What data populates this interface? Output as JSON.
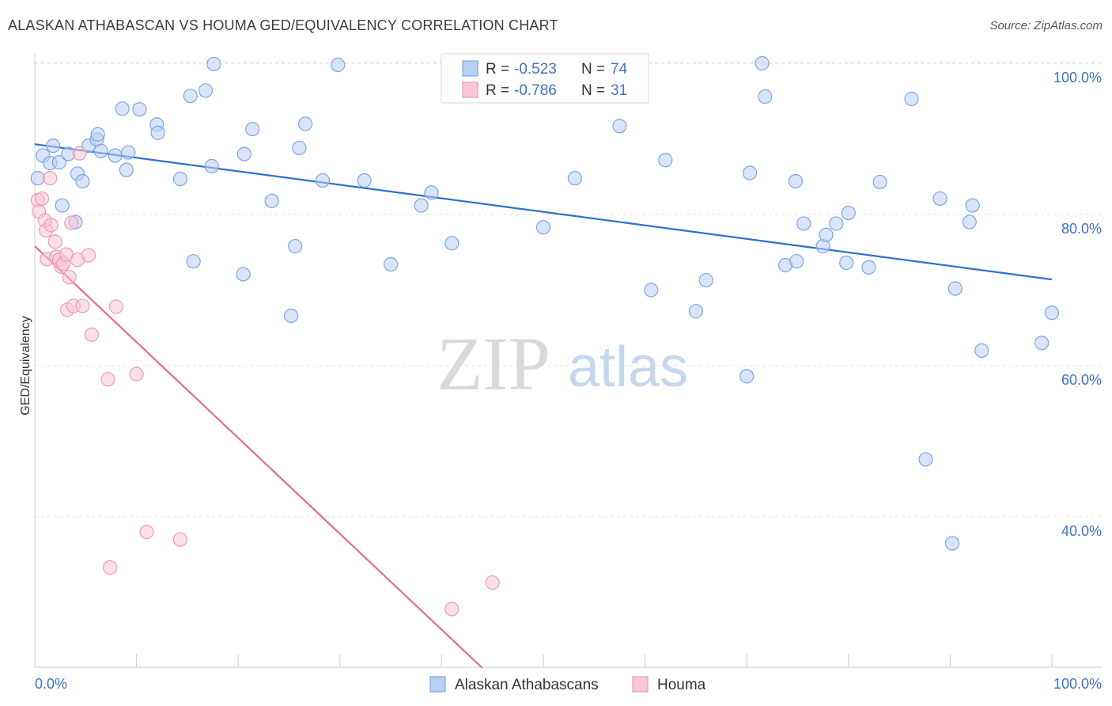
{
  "title": "ALASKAN ATHABASCAN VS HOUMA GED/EQUIVALENCY CORRELATION CHART",
  "source": "Source: ZipAtlas.com",
  "watermark": {
    "zip": "ZIP",
    "atlas": "atlas"
  },
  "legend": {
    "r_label": "R =",
    "n_label": "N =",
    "rows": [
      {
        "r": "-0.523",
        "n": "74"
      },
      {
        "r": "-0.786",
        "n": "31"
      }
    ]
  },
  "chart_data": {
    "type": "scatter",
    "title": "ALASKAN ATHABASCAN VS HOUMA GED/EQUIVALENCY CORRELATION CHART",
    "xlabel": "",
    "ylabel": "GED/Equivalency",
    "xlim": [
      0,
      100
    ],
    "ylim": [
      20,
      102
    ],
    "x_tick_labels": [
      "0.0%",
      "100.0%"
    ],
    "y_ticks": [
      40,
      60,
      80,
      100
    ],
    "y_tick_labels": [
      "40.0%",
      "60.0%",
      "80.0%",
      "100.0%"
    ],
    "grid": true,
    "legend_placement": "top-center",
    "series": [
      {
        "name": "Alaskan Athabascans",
        "color": "#7aa6e6",
        "fill": "#b8d0f4",
        "line_color": "#2f6fcf",
        "trend": {
          "x": [
            0,
            100
          ],
          "y": [
            89.3,
            71.4
          ]
        },
        "points": [
          [
            0.3,
            84.8
          ],
          [
            0.8,
            87.8
          ],
          [
            1.8,
            89.1
          ],
          [
            1.5,
            86.8
          ],
          [
            2.4,
            86.9
          ],
          [
            2.7,
            81.2
          ],
          [
            3.3,
            88.0
          ],
          [
            4.0,
            79.0
          ],
          [
            4.2,
            85.4
          ],
          [
            4.7,
            84.4
          ],
          [
            5.3,
            89.1
          ],
          [
            6.1,
            89.9
          ],
          [
            6.2,
            90.6
          ],
          [
            6.5,
            88.4
          ],
          [
            7.9,
            87.8
          ],
          [
            8.6,
            94.0
          ],
          [
            9.0,
            85.9
          ],
          [
            9.2,
            88.2
          ],
          [
            10.3,
            93.9
          ],
          [
            12.0,
            91.9
          ],
          [
            12.1,
            90.8
          ],
          [
            14.3,
            84.7
          ],
          [
            15.3,
            95.7
          ],
          [
            15.6,
            73.8
          ],
          [
            16.8,
            96.4
          ],
          [
            17.4,
            86.4
          ],
          [
            17.6,
            99.9
          ],
          [
            20.5,
            72.1
          ],
          [
            20.6,
            88.0
          ],
          [
            21.4,
            91.3
          ],
          [
            23.3,
            81.8
          ],
          [
            25.2,
            66.6
          ],
          [
            25.6,
            75.8
          ],
          [
            26.0,
            88.8
          ],
          [
            26.6,
            92.0
          ],
          [
            28.3,
            84.5
          ],
          [
            29.8,
            99.8
          ],
          [
            32.4,
            84.5
          ],
          [
            35.0,
            73.4
          ],
          [
            38.0,
            81.2
          ],
          [
            39.0,
            82.9
          ],
          [
            41.0,
            76.2
          ],
          [
            50.0,
            78.3
          ],
          [
            53.1,
            84.8
          ],
          [
            57.5,
            91.7
          ],
          [
            60.6,
            70.0
          ],
          [
            62.0,
            87.2
          ],
          [
            65.0,
            67.2
          ],
          [
            66.0,
            71.3
          ],
          [
            70.0,
            58.6
          ],
          [
            70.3,
            85.5
          ],
          [
            71.5,
            100.0
          ],
          [
            71.8,
            95.6
          ],
          [
            73.8,
            73.3
          ],
          [
            74.8,
            84.4
          ],
          [
            74.9,
            73.8
          ],
          [
            75.6,
            78.8
          ],
          [
            77.5,
            75.8
          ],
          [
            77.8,
            77.3
          ],
          [
            78.8,
            78.8
          ],
          [
            79.8,
            73.6
          ],
          [
            80.0,
            80.2
          ],
          [
            82.0,
            73.0
          ],
          [
            83.1,
            84.3
          ],
          [
            86.2,
            95.3
          ],
          [
            87.6,
            47.6
          ],
          [
            89.0,
            82.1
          ],
          [
            90.2,
            36.5
          ],
          [
            90.5,
            70.2
          ],
          [
            91.9,
            79.0
          ],
          [
            92.2,
            81.2
          ],
          [
            93.1,
            62.0
          ],
          [
            99.0,
            63.0
          ],
          [
            100.0,
            67.0
          ]
        ]
      },
      {
        "name": "Houma",
        "color": "#ef9ab3",
        "fill": "#f8c6d4",
        "line_color": "#e46a95",
        "trend": {
          "x": [
            0,
            44.0
          ],
          "y": [
            75.8,
            20.0
          ]
        },
        "points": [
          [
            0.3,
            81.9
          ],
          [
            0.4,
            80.4
          ],
          [
            0.7,
            82.1
          ],
          [
            1.0,
            79.2
          ],
          [
            1.1,
            77.9
          ],
          [
            1.2,
            74.1
          ],
          [
            1.5,
            84.8
          ],
          [
            1.6,
            78.6
          ],
          [
            2.0,
            76.4
          ],
          [
            2.1,
            74.4
          ],
          [
            2.4,
            74.0
          ],
          [
            2.6,
            73.1
          ],
          [
            2.8,
            73.5
          ],
          [
            3.1,
            74.7
          ],
          [
            3.2,
            67.4
          ],
          [
            3.4,
            71.7
          ],
          [
            3.6,
            78.9
          ],
          [
            3.8,
            67.9
          ],
          [
            4.2,
            74.0
          ],
          [
            4.4,
            88.1
          ],
          [
            4.7,
            67.9
          ],
          [
            5.3,
            74.6
          ],
          [
            5.6,
            64.1
          ],
          [
            7.2,
            58.2
          ],
          [
            7.4,
            33.3
          ],
          [
            8.0,
            67.8
          ],
          [
            10.0,
            58.9
          ],
          [
            11.0,
            38.0
          ],
          [
            14.3,
            37.0
          ],
          [
            41.0,
            27.8
          ],
          [
            45.0,
            31.3
          ]
        ]
      }
    ]
  },
  "bottom_legend": [
    {
      "label": "Alaskan Athabascans",
      "color": "#b8d0f4",
      "border": "#7aa6e6"
    },
    {
      "label": "Houma",
      "color": "#f8c6d4",
      "border": "#ef9ab3"
    }
  ]
}
